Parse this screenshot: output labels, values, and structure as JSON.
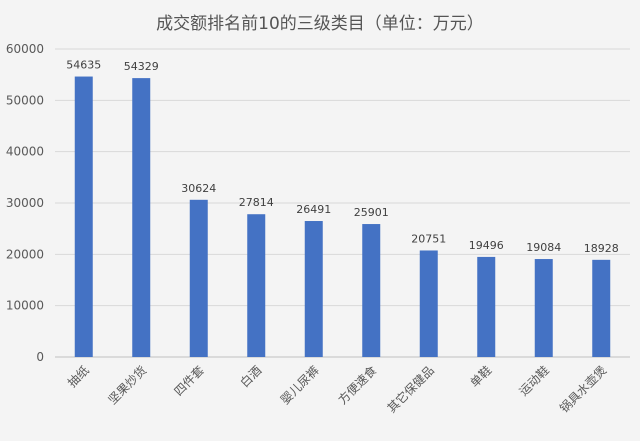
{
  "chart_data": {
    "type": "bar",
    "title": "成交额排名前10的三级类目（单位：万元）",
    "categories": [
      "抽纸",
      "坚果炒货",
      "四件套",
      "白酒",
      "婴儿尿裤",
      "方便速食",
      "其它保健品",
      "单鞋",
      "运动鞋",
      "锅具水壶煲"
    ],
    "values": [
      54635,
      54329,
      30624,
      27814,
      26491,
      25901,
      20751,
      19496,
      19084,
      18928
    ],
    "ylim": [
      0,
      60000
    ],
    "yticks": [
      "0",
      "10000",
      "20000",
      "30000",
      "40000",
      "50000",
      "60000"
    ],
    "grid": true,
    "legend": "none",
    "bar_color": "#4472c4"
  }
}
